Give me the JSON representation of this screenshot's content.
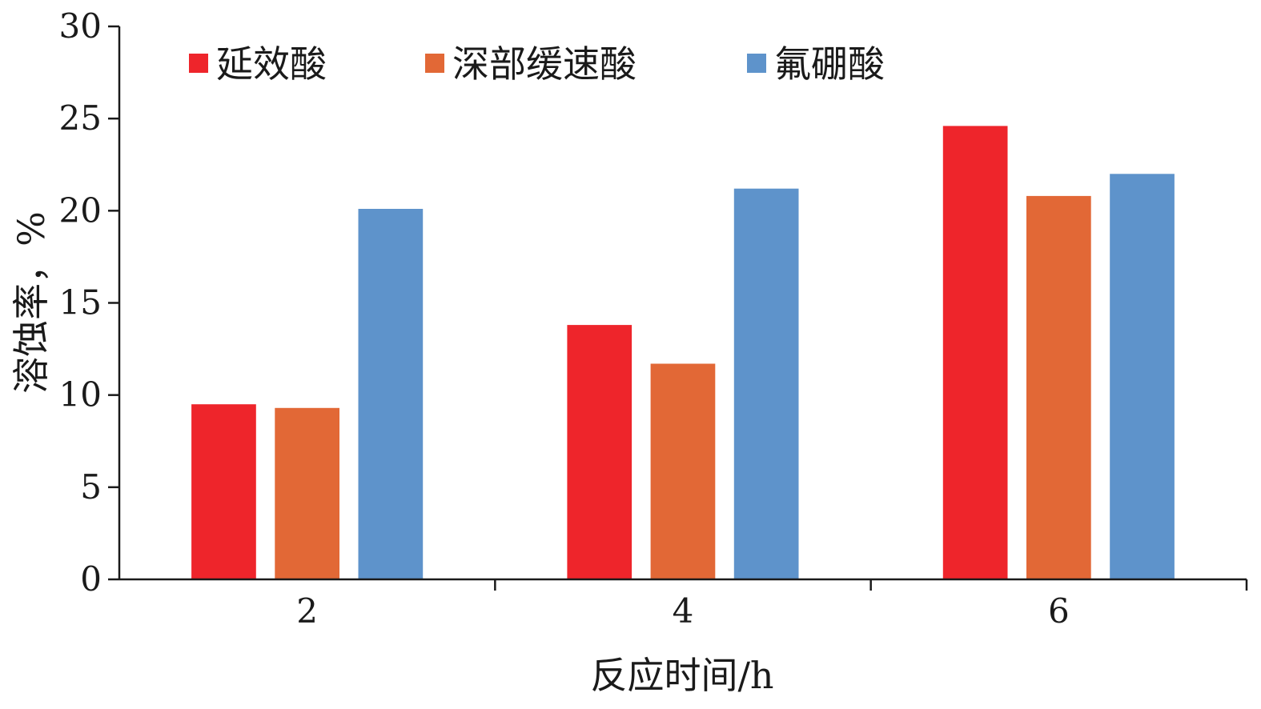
{
  "chart_data": {
    "type": "bar",
    "categories": [
      "2",
      "4",
      "6"
    ],
    "series": [
      {
        "name": "延效酸",
        "color": "#ee252b",
        "values": [
          9.5,
          13.8,
          24.6
        ]
      },
      {
        "name": "深部缓速酸",
        "color": "#e26836",
        "values": [
          9.3,
          11.7,
          20.8
        ]
      },
      {
        "name": "氟硼酸",
        "color": "#5e93cb",
        "values": [
          20.1,
          21.2,
          22.0
        ]
      }
    ],
    "xlabel": "反应时间/h",
    "ylabel": "溶蚀率，%",
    "ylim": [
      0,
      30
    ],
    "yticks": [
      "0",
      "5",
      "10",
      "15",
      "20",
      "25",
      "30"
    ],
    "legend_position": "top-left",
    "grid": false
  }
}
